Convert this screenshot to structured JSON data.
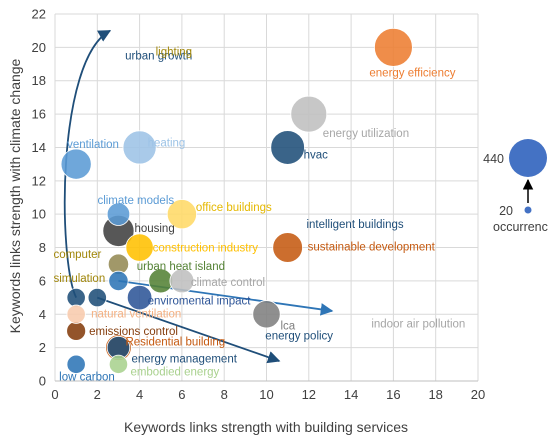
{
  "chart_data": {
    "type": "scatter",
    "title": "",
    "xlabel": "Keywords links strength with building services",
    "ylabel": "Keywords links strength with climate change",
    "xlim": [
      0,
      20
    ],
    "ylim": [
      0,
      22
    ],
    "x_ticks": [
      0,
      2,
      4,
      6,
      8,
      10,
      12,
      14,
      16,
      18,
      20
    ],
    "y_ticks": [
      0,
      2,
      4,
      6,
      8,
      10,
      12,
      14,
      16,
      18,
      20,
      22
    ],
    "grid": true,
    "points": [
      {
        "label": "energy efficiency",
        "x": 16,
        "y": 20,
        "occurrences": 440,
        "color": "#ED7D31",
        "text_color": "#ED7D31"
      },
      {
        "label": "energy utilization",
        "x": 12,
        "y": 16,
        "occurrences": 380,
        "color": "#BFBFBF",
        "text_color": "#A6A6A6"
      },
      {
        "label": "hvac",
        "x": 11,
        "y": 14,
        "occurrences": 320,
        "color": "#1F4E79",
        "text_color": "#1F4E79"
      },
      {
        "label": "heating",
        "x": 4,
        "y": 14,
        "occurrences": 300,
        "color": "#9DC3E6",
        "text_color": "#9DC3E6"
      },
      {
        "label": "ventilation",
        "x": 1,
        "y": 13,
        "occurrences": 230,
        "color": "#5B9BD5",
        "text_color": "#5B9BD5"
      },
      {
        "label": "office buildings",
        "x": 6,
        "y": 10,
        "occurrences": 210,
        "color": "#FFD966",
        "text_color": "#E5B800"
      },
      {
        "label": "climate models",
        "x": 3,
        "y": 10,
        "occurrences": 90,
        "color": "#5B9BD5",
        "text_color": "#5B9BD5"
      },
      {
        "label": "housing",
        "x": 3,
        "y": 9,
        "occurrences": 250,
        "color": "#404040",
        "text_color": "#404040"
      },
      {
        "label": "construction industry",
        "x": 4,
        "y": 8,
        "occurrences": 170,
        "color": "#FFC000",
        "text_color": "#FFC000"
      },
      {
        "label": "sustainable development",
        "x": 11,
        "y": 8,
        "occurrences": 220,
        "color": "#C55A11",
        "text_color": "#C55A11"
      },
      {
        "label": "computer simulation",
        "x": 3,
        "y": 7,
        "occurrences": 60,
        "color": "#948A54",
        "text_color": "#A0860A"
      },
      {
        "label": "urban heat island",
        "x": 5,
        "y": 6,
        "occurrences": 110,
        "color": "#548235",
        "text_color": "#548235"
      },
      {
        "label": "climate control",
        "x": 6,
        "y": 6,
        "occurrences": 110,
        "color": "#BFBFBF",
        "text_color": "#A6A6A6"
      },
      {
        "label": "intelligent buildings",
        "x": 3,
        "y": 6,
        "occurrences": 50,
        "color": "#2E75B6",
        "text_color": "#1F4E79"
      },
      {
        "label": "enviromental impact",
        "x": 4,
        "y": 5,
        "occurrences": 120,
        "color": "#2E5597",
        "text_color": "#2E5597"
      },
      {
        "label": "urban growth",
        "x": 1,
        "y": 5,
        "occurrences": 40,
        "color": "#1F4E79",
        "text_color": "#1F4E79"
      },
      {
        "label": "energy policy",
        "x": 2,
        "y": 5,
        "occurrences": 40,
        "color": "#1F4E79",
        "text_color": "#1F4E79"
      },
      {
        "label": "lca",
        "x": 10,
        "y": 4,
        "occurrences": 170,
        "color": "#7F7F7F",
        "text_color": "#7F7F7F"
      },
      {
        "label": "natural ventilation",
        "x": 1,
        "y": 4,
        "occurrences": 40,
        "color": "#F8CBAD",
        "text_color": "#F4B183"
      },
      {
        "label": "emissions control",
        "x": 1,
        "y": 3,
        "occurrences": 45,
        "color": "#843C0C",
        "text_color": "#843C0C"
      },
      {
        "label": "Residential building",
        "x": 3,
        "y": 2,
        "occurrences": 140,
        "color": "#C55A11",
        "text_color": "#C55A11"
      },
      {
        "label": "energy management",
        "x": 3,
        "y": 2,
        "occurrences": 90,
        "color": "#1F4E79",
        "text_color": "#1F4E79"
      },
      {
        "label": "low carbon",
        "x": 1,
        "y": 1,
        "occurrences": 40,
        "color": "#2E75B6",
        "text_color": "#2E75B6"
      },
      {
        "label": "embodied energy",
        "x": 3,
        "y": 1,
        "occurrences": 40,
        "color": "#A9D18E",
        "text_color": "#A9D18E"
      }
    ],
    "off_chart_labels": [
      {
        "label": "lighting",
        "x": 4,
        "y": 20,
        "color": "#A0860A"
      },
      {
        "label": "indoor air pollution",
        "x": 14.2,
        "y": 3.7,
        "color": "#A6A6A6"
      }
    ],
    "arrows": [
      {
        "from": "urban growth",
        "to_label": "urban growth",
        "color": "#1F4E79"
      },
      {
        "from": "intelligent buildings",
        "to_label": "intelligent buildings",
        "color": "#2E75B6"
      },
      {
        "from": "energy policy",
        "to_label": "energy policy",
        "color": "#1F4E79"
      }
    ],
    "size_legend": {
      "title": "occurrenc",
      "min": 20,
      "max": 440,
      "color": "#4472C4",
      "placement": "right"
    }
  }
}
